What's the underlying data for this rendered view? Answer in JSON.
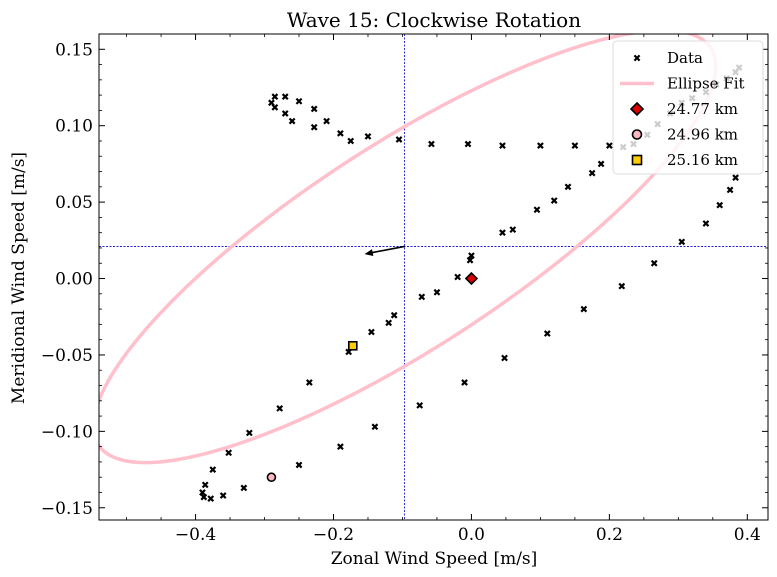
{
  "chart_data": {
    "type": "scatter",
    "title": "Wave 15: Clockwise Rotation",
    "xlabel": "Zonal Wind Speed [m/s]",
    "ylabel": "Meridional Wind Speed [m/s]",
    "xlim": [
      -0.54,
      0.43
    ],
    "ylim": [
      -0.158,
      0.16
    ],
    "xticks": [
      -0.4,
      -0.2,
      0.0,
      0.2,
      0.4
    ],
    "xtick_labels": [
      "−0.4",
      "−0.2",
      "0.0",
      "0.2",
      "0.4"
    ],
    "yticks": [
      -0.15,
      -0.1,
      -0.05,
      0.0,
      0.05,
      0.1,
      0.15
    ],
    "ytick_labels": [
      "−0.15",
      "−0.10",
      "−0.05",
      "0.00",
      "0.05",
      "0.10",
      "0.15"
    ],
    "grid": false,
    "legend_position": "top-right",
    "crosshair": {
      "x": -0.097,
      "y": 0.021,
      "color": "#0000cc"
    },
    "arrow": {
      "from": [
        -0.097,
        0.021
      ],
      "to": [
        -0.155,
        0.016
      ],
      "color": "#000000"
    },
    "ellipse_fit": {
      "name": "Ellipse Fit",
      "color": "#ffc0cb",
      "center": [
        -0.097,
        0.021
      ],
      "vertex_a": [
        0.112,
        0.145
      ],
      "vertex_b": [
        -0.497,
        -0.047
      ],
      "samples": 240
    },
    "series": [
      {
        "name": "Data",
        "marker": "x",
        "color": "#000000",
        "points": [
          [
            0.0,
            0.015
          ],
          [
            -0.002,
            0.012
          ],
          [
            -0.02,
            0.001
          ],
          [
            -0.05,
            -0.009
          ],
          [
            -0.072,
            -0.012
          ],
          [
            -0.112,
            -0.024
          ],
          [
            -0.12,
            -0.029
          ],
          [
            -0.145,
            -0.035
          ],
          [
            -0.178,
            -0.048
          ],
          [
            -0.235,
            -0.068
          ],
          [
            -0.278,
            -0.085
          ],
          [
            -0.322,
            -0.101
          ],
          [
            -0.352,
            -0.114
          ],
          [
            -0.375,
            -0.125
          ],
          [
            -0.386,
            -0.135
          ],
          [
            -0.39,
            -0.14
          ],
          [
            -0.388,
            -0.143
          ],
          [
            -0.378,
            -0.144
          ],
          [
            -0.36,
            -0.142
          ],
          [
            -0.33,
            -0.137
          ],
          [
            -0.25,
            -0.122
          ],
          [
            -0.19,
            -0.11
          ],
          [
            -0.14,
            -0.097
          ],
          [
            -0.075,
            -0.083
          ],
          [
            -0.01,
            -0.068
          ],
          [
            0.048,
            -0.052
          ],
          [
            0.11,
            -0.036
          ],
          [
            0.163,
            -0.02
          ],
          [
            0.218,
            -0.005
          ],
          [
            0.265,
            0.01
          ],
          [
            0.305,
            0.024
          ],
          [
            0.34,
            0.036
          ],
          [
            0.36,
            0.048
          ],
          [
            0.375,
            0.058
          ],
          [
            0.383,
            0.066
          ],
          [
            0.388,
            0.138
          ],
          [
            0.383,
            0.135
          ],
          [
            0.37,
            0.131
          ],
          [
            0.355,
            0.127
          ],
          [
            0.34,
            0.122
          ],
          [
            0.32,
            0.118
          ],
          [
            0.305,
            0.115
          ],
          [
            0.288,
            0.108
          ],
          [
            0.27,
            0.101
          ],
          [
            0.255,
            0.094
          ],
          [
            0.235,
            0.088
          ],
          [
            0.22,
            0.086
          ],
          [
            0.2,
            0.087
          ],
          [
            0.15,
            0.087
          ],
          [
            0.1,
            0.087
          ],
          [
            0.045,
            0.087
          ],
          [
            -0.005,
            0.088
          ],
          [
            -0.058,
            0.088
          ],
          [
            -0.105,
            0.091
          ],
          [
            -0.15,
            0.093
          ],
          [
            -0.175,
            0.09
          ],
          [
            -0.19,
            0.095
          ],
          [
            -0.21,
            0.103
          ],
          [
            -0.228,
            0.099
          ],
          [
            -0.228,
            0.111
          ],
          [
            -0.25,
            0.116
          ],
          [
            -0.26,
            0.103
          ],
          [
            -0.27,
            0.108
          ],
          [
            -0.27,
            0.119
          ],
          [
            -0.285,
            0.112
          ],
          [
            -0.285,
            0.119
          ],
          [
            -0.29,
            0.115
          ],
          [
            0.045,
            0.03
          ],
          [
            0.06,
            0.032
          ],
          [
            0.095,
            0.045
          ],
          [
            0.12,
            0.051
          ],
          [
            0.14,
            0.06
          ],
          [
            0.175,
            0.069
          ],
          [
            0.188,
            0.075
          ]
        ]
      },
      {
        "name": "24.77 km",
        "marker": "diamond",
        "color": "#dd0000",
        "points": [
          [
            0.0,
            0.0
          ]
        ]
      },
      {
        "name": "24.96 km",
        "marker": "circle",
        "color": "#ffb6c1",
        "points": [
          [
            -0.29,
            -0.13
          ]
        ]
      },
      {
        "name": "25.16 km",
        "marker": "square",
        "color": "#ffcc00",
        "points": [
          [
            -0.172,
            -0.044
          ]
        ]
      }
    ]
  }
}
